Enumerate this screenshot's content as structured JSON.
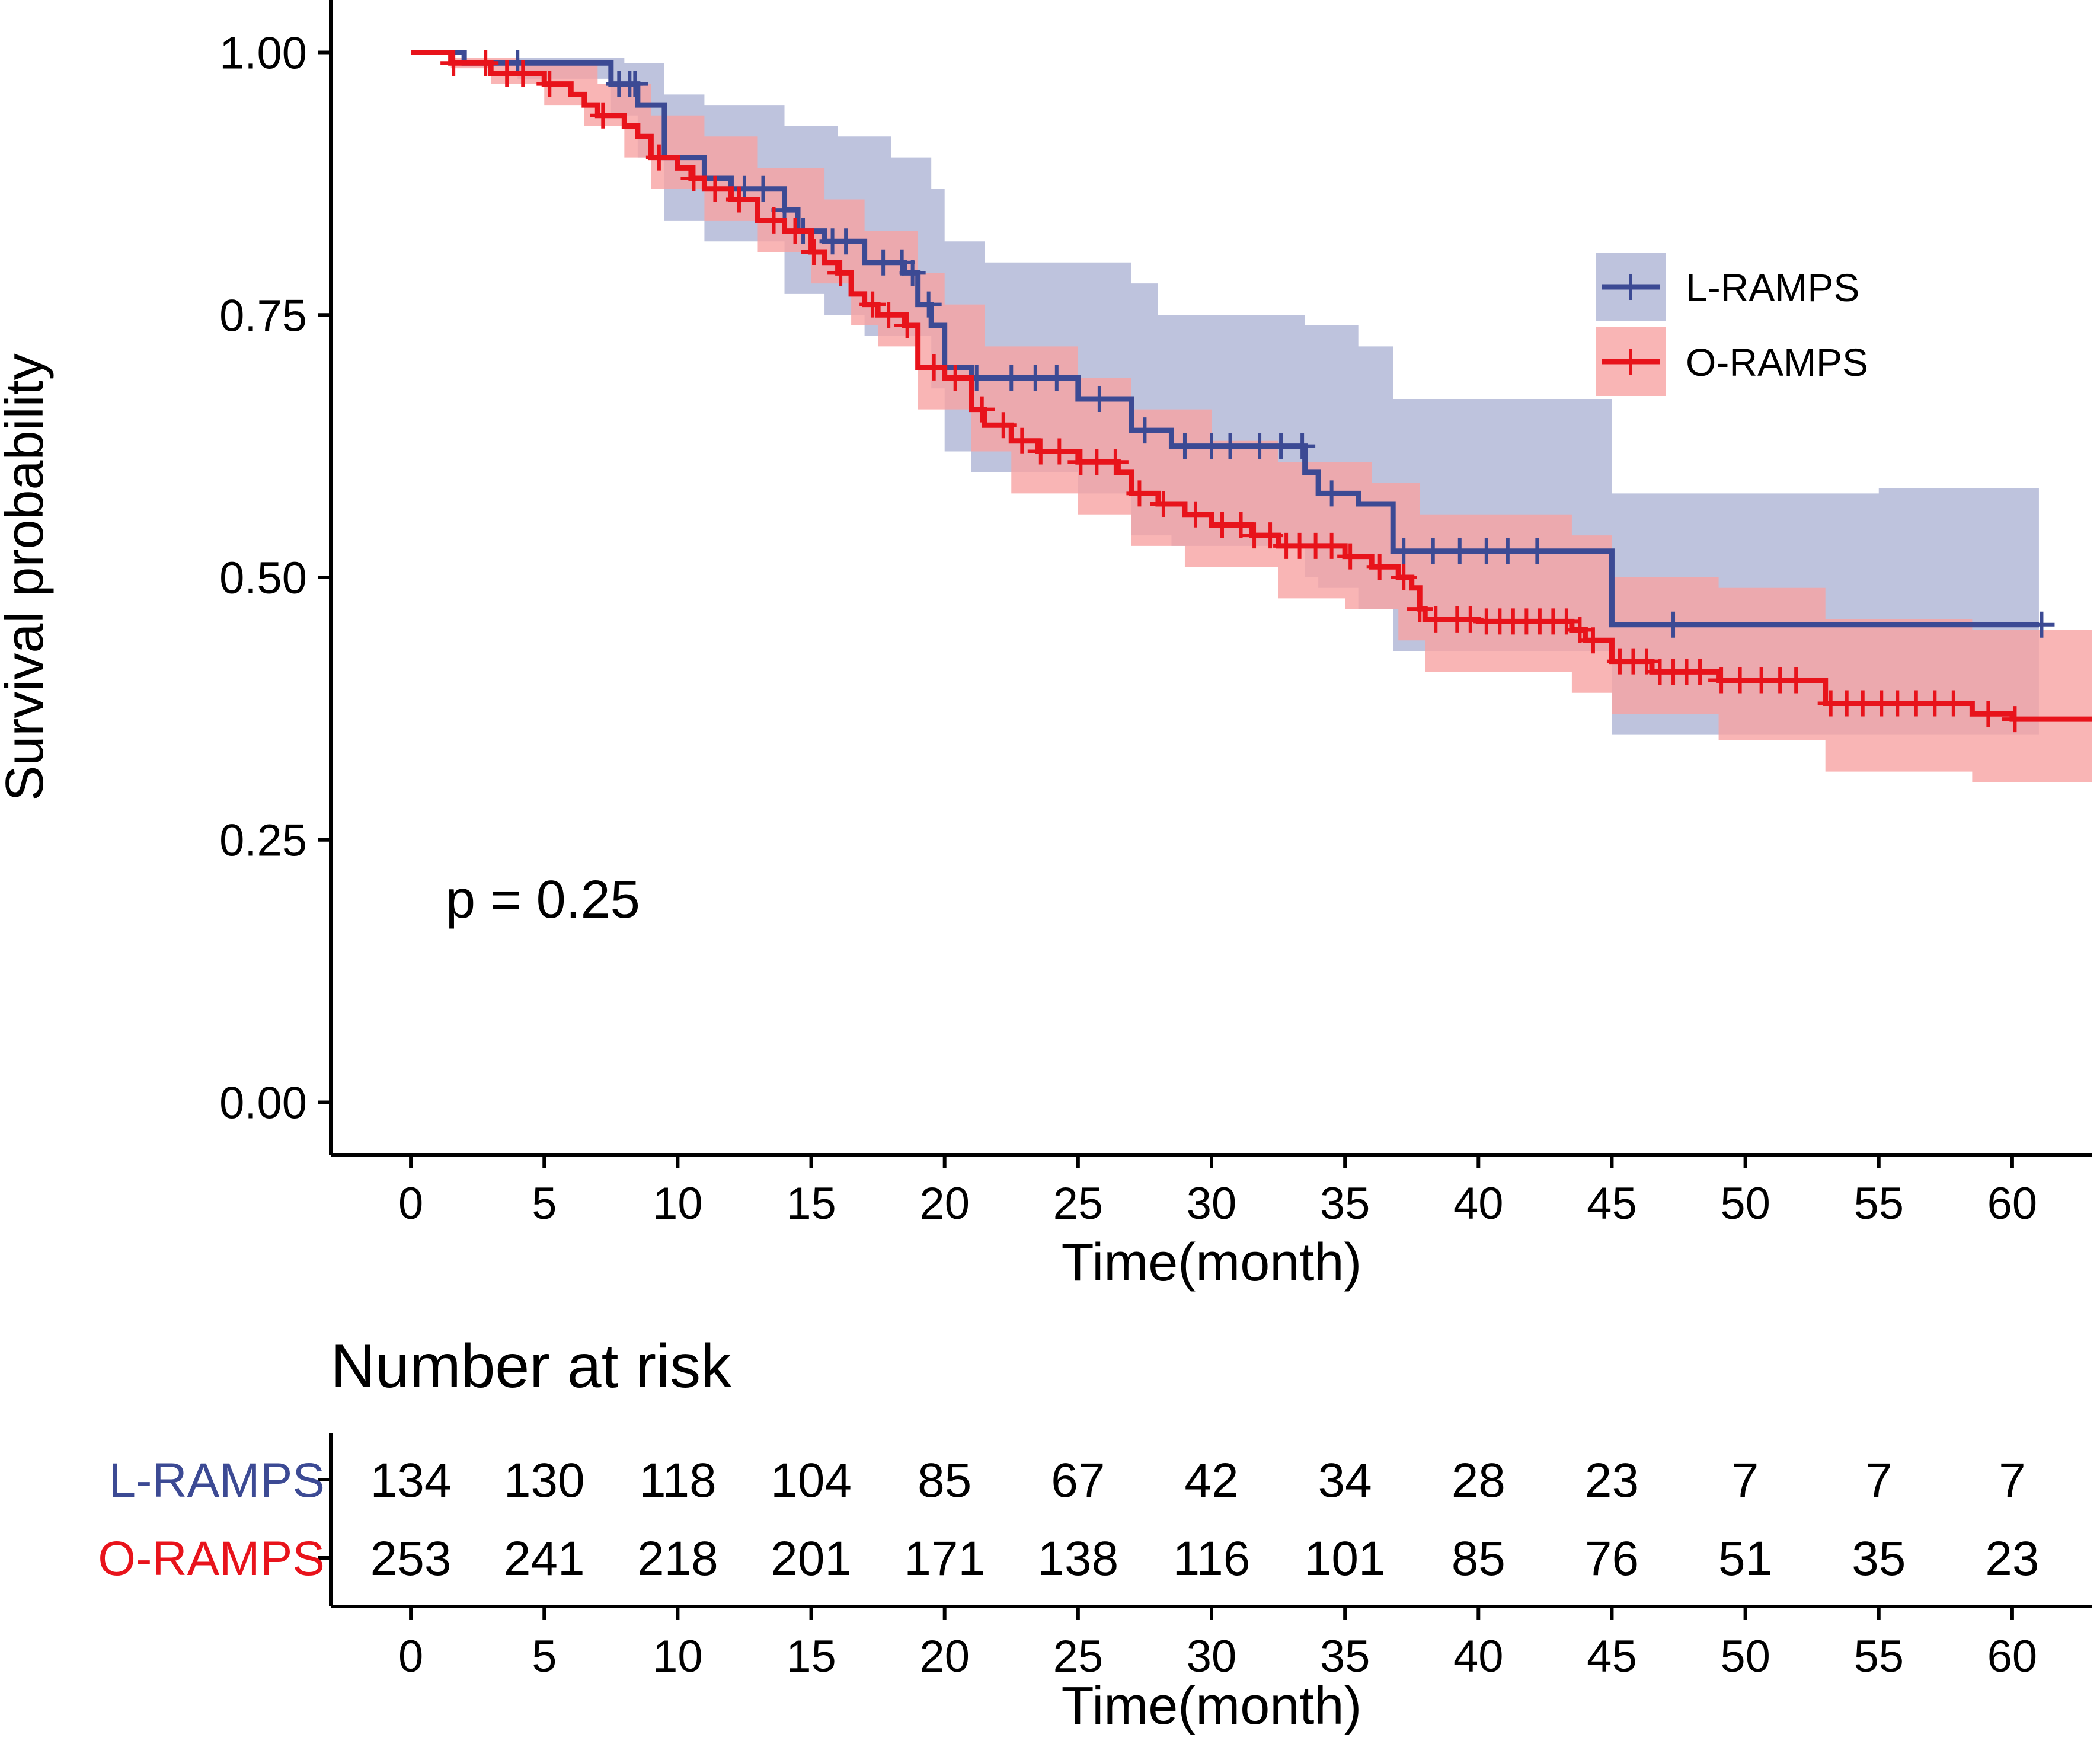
{
  "chart_data": {
    "type": "line",
    "subtype": "kaplan-meier",
    "xlabel": "Time(month)",
    "ylabel": "Survival probability",
    "xlim": [
      -3,
      63
    ],
    "ylim": [
      -0.05,
      1.05
    ],
    "x_ticks": [
      0,
      5,
      10,
      15,
      20,
      25,
      30,
      35,
      40,
      45,
      50,
      55,
      60
    ],
    "y_ticks": [
      "0.00",
      "0.25",
      "0.50",
      "0.75",
      "1.00"
    ],
    "pvalue_text": "p = 0.25",
    "legend_position": "right",
    "series": [
      {
        "name": "L-RAMPS",
        "color": "#3c4a94",
        "ci_color": "#8891c1",
        "steps": [
          [
            0,
            1.0
          ],
          [
            2,
            0.99
          ],
          [
            7.5,
            0.97
          ],
          [
            8.5,
            0.95
          ],
          [
            9.5,
            0.9
          ],
          [
            11,
            0.88
          ],
          [
            12,
            0.87
          ],
          [
            14,
            0.85
          ],
          [
            14.5,
            0.83
          ],
          [
            15.5,
            0.82
          ],
          [
            17,
            0.8
          ],
          [
            18.5,
            0.79
          ],
          [
            19,
            0.76
          ],
          [
            19.5,
            0.74
          ],
          [
            20,
            0.7
          ],
          [
            21,
            0.69
          ],
          [
            25,
            0.67
          ],
          [
            27,
            0.64
          ],
          [
            28.5,
            0.625
          ],
          [
            33.5,
            0.6
          ],
          [
            34,
            0.58
          ],
          [
            35.5,
            0.57
          ],
          [
            36.8,
            0.525
          ],
          [
            45,
            0.455
          ],
          [
            61,
            0.455
          ]
        ],
        "censor": [
          4,
          7.8,
          8.2,
          8.4,
          11,
          12.5,
          13.2,
          14,
          14.7,
          15.8,
          16.3,
          17.7,
          18.4,
          18.8,
          19.4,
          20,
          21.2,
          22.5,
          23.4,
          24.2,
          25.8,
          27.5,
          29,
          30,
          30.7,
          31.8,
          32.6,
          33.4,
          34.5,
          37.2,
          38.3,
          39.3,
          40.3,
          41.1,
          42.2,
          47.3,
          61.1
        ],
        "ci_upper": [
          [
            0,
            1.0
          ],
          [
            4,
            0.995
          ],
          [
            8,
            0.99
          ],
          [
            9.5,
            0.96
          ],
          [
            11,
            0.95
          ],
          [
            14,
            0.93
          ],
          [
            16,
            0.92
          ],
          [
            18,
            0.9
          ],
          [
            19.5,
            0.87
          ],
          [
            20,
            0.82
          ],
          [
            21.5,
            0.8
          ],
          [
            27,
            0.78
          ],
          [
            28,
            0.75
          ],
          [
            33.5,
            0.74
          ],
          [
            35.5,
            0.72
          ],
          [
            36.8,
            0.67
          ],
          [
            45,
            0.58
          ],
          [
            55,
            0.585
          ],
          [
            61,
            0.585
          ]
        ],
        "ci_lower": [
          [
            0,
            1.0
          ],
          [
            4,
            0.975
          ],
          [
            7.5,
            0.94
          ],
          [
            8.5,
            0.9
          ],
          [
            9.5,
            0.84
          ],
          [
            11,
            0.82
          ],
          [
            14,
            0.77
          ],
          [
            15.5,
            0.75
          ],
          [
            17,
            0.73
          ],
          [
            19.5,
            0.68
          ],
          [
            20,
            0.62
          ],
          [
            21,
            0.6
          ],
          [
            25,
            0.58
          ],
          [
            27,
            0.54
          ],
          [
            28.5,
            0.53
          ],
          [
            33.5,
            0.5
          ],
          [
            34,
            0.49
          ],
          [
            35.5,
            0.47
          ],
          [
            36.8,
            0.43
          ],
          [
            45,
            0.35
          ],
          [
            61,
            0.35
          ]
        ]
      },
      {
        "name": "O-RAMPS",
        "color": "#e8131b",
        "ci_color": "#f7a3a3",
        "steps": [
          [
            0,
            1.0
          ],
          [
            1.5,
            0.99
          ],
          [
            3,
            0.98
          ],
          [
            5,
            0.97
          ],
          [
            6,
            0.96
          ],
          [
            6.5,
            0.95
          ],
          [
            7,
            0.94
          ],
          [
            8,
            0.93
          ],
          [
            8.5,
            0.92
          ],
          [
            9,
            0.9
          ],
          [
            10,
            0.89
          ],
          [
            10.5,
            0.88
          ],
          [
            11,
            0.87
          ],
          [
            12,
            0.86
          ],
          [
            13,
            0.84
          ],
          [
            14,
            0.83
          ],
          [
            15,
            0.81
          ],
          [
            15.5,
            0.8
          ],
          [
            16,
            0.79
          ],
          [
            16.5,
            0.77
          ],
          [
            17,
            0.76
          ],
          [
            17.5,
            0.75
          ],
          [
            18.5,
            0.74
          ],
          [
            19,
            0.7
          ],
          [
            20,
            0.69
          ],
          [
            21,
            0.66
          ],
          [
            21.5,
            0.645
          ],
          [
            22.5,
            0.63
          ],
          [
            23.5,
            0.62
          ],
          [
            25,
            0.61
          ],
          [
            26.5,
            0.6
          ],
          [
            27,
            0.58
          ],
          [
            28,
            0.57
          ],
          [
            29,
            0.56
          ],
          [
            30,
            0.55
          ],
          [
            31.5,
            0.54
          ],
          [
            32.5,
            0.53
          ],
          [
            35,
            0.52
          ],
          [
            36,
            0.51
          ],
          [
            37,
            0.5
          ],
          [
            37.5,
            0.49
          ],
          [
            37.8,
            0.47
          ],
          [
            38,
            0.46
          ],
          [
            40,
            0.458
          ],
          [
            43.5,
            0.45
          ],
          [
            44,
            0.44
          ],
          [
            45,
            0.42
          ],
          [
            46.5,
            0.41
          ],
          [
            49,
            0.402
          ],
          [
            53,
            0.38
          ],
          [
            58.5,
            0.37
          ],
          [
            60,
            0.365
          ],
          [
            63,
            0.365
          ]
        ],
        "censor": [
          1.6,
          2.8,
          3.6,
          4.2,
          5.2,
          7.2,
          9.3,
          10.6,
          11.4,
          12.3,
          13.6,
          14.4,
          15.1,
          16.1,
          17.3,
          17.9,
          18.6,
          19.6,
          20.4,
          21.4,
          22.2,
          22.9,
          23.6,
          24.3,
          25.1,
          25.7,
          26.4,
          27.3,
          28.2,
          29.4,
          30.4,
          31.1,
          31.6,
          32.2,
          32.8,
          33.3,
          33.9,
          34.5,
          35.2,
          36.3,
          37.2,
          37.8,
          38.4,
          39.2,
          39.7,
          40.3,
          40.8,
          41.3,
          41.8,
          42.3,
          42.8,
          43.3,
          43.8,
          44.3,
          45.3,
          45.8,
          46.3,
          46.8,
          47.3,
          47.8,
          48.3,
          49.1,
          49.8,
          50.6,
          51.3,
          51.9,
          53.2,
          53.8,
          54.4,
          55.1,
          55.7,
          56.4,
          57.1,
          57.8,
          59.1,
          60.1
        ],
        "ci_upper": [
          [
            0,
            1.0
          ],
          [
            1.5,
            0.995
          ],
          [
            4,
            0.99
          ],
          [
            7,
            0.97
          ],
          [
            9,
            0.94
          ],
          [
            11,
            0.92
          ],
          [
            13,
            0.89
          ],
          [
            15.5,
            0.86
          ],
          [
            17,
            0.83
          ],
          [
            19,
            0.79
          ],
          [
            20,
            0.76
          ],
          [
            21.5,
            0.72
          ],
          [
            25,
            0.69
          ],
          [
            27,
            0.66
          ],
          [
            30,
            0.63
          ],
          [
            32.5,
            0.61
          ],
          [
            36,
            0.59
          ],
          [
            37.8,
            0.56
          ],
          [
            43.5,
            0.54
          ],
          [
            45,
            0.5
          ],
          [
            49,
            0.49
          ],
          [
            53,
            0.46
          ],
          [
            58.5,
            0.45
          ],
          [
            63,
            0.45
          ]
        ],
        "ci_lower": [
          [
            0,
            1.0
          ],
          [
            1.5,
            0.985
          ],
          [
            3,
            0.97
          ],
          [
            5,
            0.95
          ],
          [
            6.5,
            0.93
          ],
          [
            8,
            0.9
          ],
          [
            9,
            0.87
          ],
          [
            11,
            0.84
          ],
          [
            13,
            0.81
          ],
          [
            15,
            0.78
          ],
          [
            16.5,
            0.74
          ],
          [
            17.5,
            0.72
          ],
          [
            19,
            0.66
          ],
          [
            21,
            0.62
          ],
          [
            22.5,
            0.58
          ],
          [
            25,
            0.56
          ],
          [
            27,
            0.53
          ],
          [
            29,
            0.51
          ],
          [
            32.5,
            0.48
          ],
          [
            35,
            0.47
          ],
          [
            37,
            0.44
          ],
          [
            38,
            0.41
          ],
          [
            43.5,
            0.39
          ],
          [
            45,
            0.37
          ],
          [
            49,
            0.345
          ],
          [
            53,
            0.315
          ],
          [
            58.5,
            0.305
          ],
          [
            63,
            0.305
          ]
        ]
      }
    ],
    "risk_table": {
      "title": "Number at risk",
      "x_ticks": [
        0,
        5,
        10,
        15,
        20,
        25,
        30,
        35,
        40,
        45,
        50,
        55,
        60
      ],
      "xlabel": "Time(month)",
      "rows": [
        {
          "name": "L-RAMPS",
          "color": "#3c4a94",
          "values": [
            134,
            130,
            118,
            104,
            85,
            67,
            42,
            34,
            28,
            23,
            7,
            7,
            7
          ]
        },
        {
          "name": "O-RAMPS",
          "color": "#e8131b",
          "values": [
            253,
            241,
            218,
            201,
            171,
            138,
            116,
            101,
            85,
            76,
            51,
            35,
            23
          ]
        }
      ]
    }
  }
}
